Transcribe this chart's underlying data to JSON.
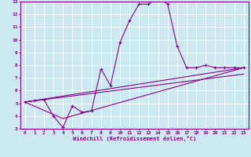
{
  "xlabel": "Windchill (Refroidissement éolien,°C)",
  "background_color": "#cce8f0",
  "grid_color": "#ffffff",
  "line_color": "#880088",
  "xlim": [
    -0.5,
    23.5
  ],
  "ylim": [
    3,
    13
  ],
  "xticks": [
    0,
    1,
    2,
    3,
    4,
    5,
    6,
    7,
    8,
    9,
    10,
    11,
    12,
    13,
    14,
    15,
    16,
    17,
    18,
    19,
    20,
    21,
    22,
    23
  ],
  "yticks": [
    3,
    4,
    5,
    6,
    7,
    8,
    9,
    10,
    11,
    12,
    13
  ],
  "line1_x": [
    0,
    1,
    2,
    3,
    4,
    5,
    6,
    7,
    8,
    9,
    10,
    11,
    12,
    13,
    14,
    15,
    16,
    17,
    18,
    19,
    20,
    21,
    22,
    23
  ],
  "line1_y": [
    5.1,
    5.2,
    5.3,
    4.0,
    3.1,
    4.8,
    4.3,
    4.4,
    7.7,
    6.4,
    9.8,
    11.5,
    12.8,
    12.8,
    13.3,
    12.8,
    9.5,
    7.8,
    7.8,
    8.0,
    7.8,
    7.8,
    7.8,
    7.8
  ],
  "line2_x": [
    0,
    23
  ],
  "line2_y": [
    5.1,
    7.8
  ],
  "line3_x": [
    0,
    4,
    23
  ],
  "line3_y": [
    5.1,
    3.8,
    7.8
  ],
  "line4_x": [
    0,
    23
  ],
  "line4_y": [
    5.1,
    7.3
  ]
}
